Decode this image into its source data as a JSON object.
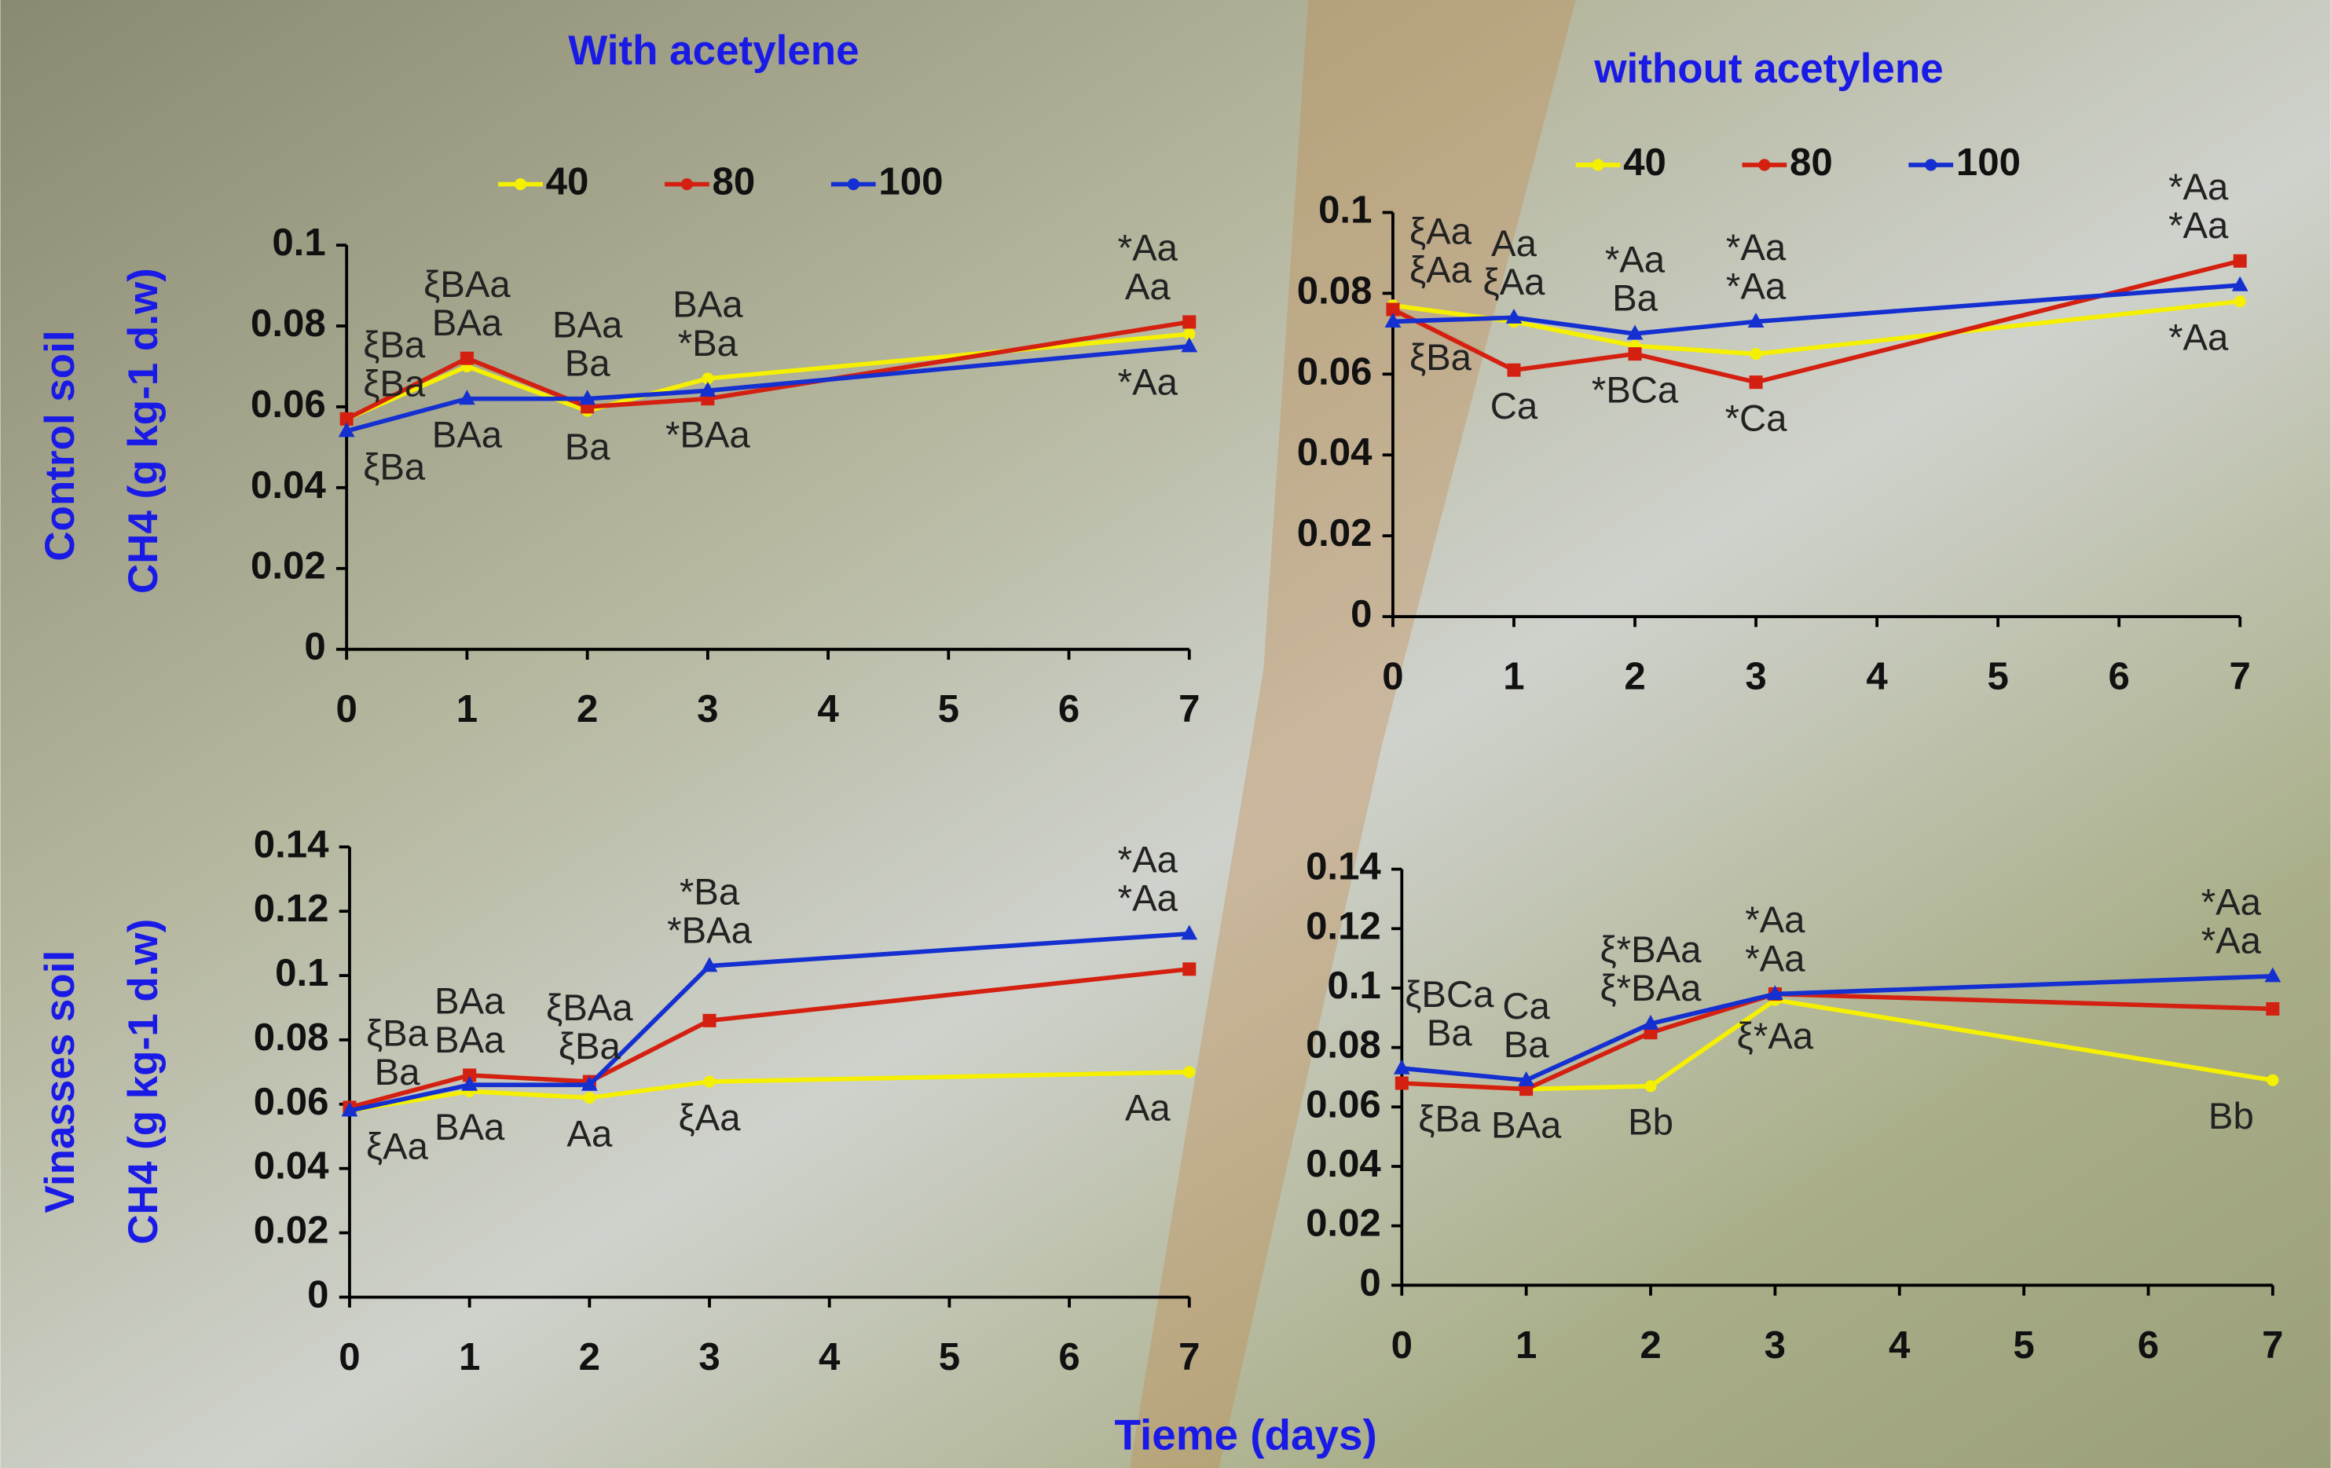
{
  "x_label": "Tieme (days)",
  "chart_data": [
    {
      "type": "line",
      "title": "With acetylene",
      "row_label": "Control soil",
      "y_label": "CH4 (g kg-1 d.w)",
      "x": [
        0,
        1,
        2,
        3,
        7
      ],
      "xlim": [
        0,
        7
      ],
      "xticks": [
        0,
        1,
        2,
        3,
        4,
        5,
        6,
        7
      ],
      "ylim": [
        0,
        0.1
      ],
      "yticks": [
        0,
        0.02,
        0.04,
        0.06,
        0.08,
        0.1
      ],
      "series": [
        {
          "name": "40",
          "color": "#f5f000",
          "marker": "circle",
          "values": [
            0.057,
            0.07,
            0.059,
            0.067,
            0.078
          ]
        },
        {
          "name": "80",
          "color": "#d42010",
          "marker": "square",
          "values": [
            0.057,
            0.072,
            0.06,
            0.062,
            0.081
          ]
        },
        {
          "name": "100",
          "color": "#1530d0",
          "marker": "triangle",
          "values": [
            0.054,
            0.062,
            0.062,
            0.064,
            0.075
          ]
        }
      ],
      "annotations": [
        [
          "ξBa",
          "ξBa",
          "ξBa"
        ],
        [
          "ξBAa",
          "BAa",
          "BAa"
        ],
        [
          "BAa",
          "Ba",
          "Ba"
        ],
        [
          "BAa",
          "*Ba",
          "*BAa"
        ],
        [
          "*Aa",
          "Aa",
          "*Aa"
        ]
      ]
    },
    {
      "type": "line",
      "title": "without acetylene",
      "x": [
        0,
        1,
        2,
        3,
        7
      ],
      "xlim": [
        0,
        7
      ],
      "xticks": [
        0,
        1,
        2,
        3,
        4,
        5,
        6,
        7
      ],
      "ylim": [
        0,
        0.1
      ],
      "yticks": [
        0,
        0.02,
        0.04,
        0.06,
        0.08,
        0.1
      ],
      "series": [
        {
          "name": "40",
          "color": "#f5f000",
          "marker": "circle",
          "values": [
            0.077,
            0.073,
            0.067,
            0.065,
            0.078
          ]
        },
        {
          "name": "80",
          "color": "#d42010",
          "marker": "square",
          "values": [
            0.076,
            0.061,
            0.065,
            0.058,
            0.088
          ]
        },
        {
          "name": "100",
          "color": "#1530d0",
          "marker": "triangle",
          "values": [
            0.073,
            0.074,
            0.07,
            0.073,
            0.082
          ]
        }
      ],
      "annotations": [
        [
          "ξAa",
          "ξAa",
          "ξBa"
        ],
        [
          "Aa",
          "ξAa",
          "Ca"
        ],
        [
          "*Aa",
          "Ba",
          "*BCa"
        ],
        [
          "*Aa",
          "*Aa",
          "*Ca"
        ],
        [
          "*Aa",
          "*Aa",
          "*Aa"
        ]
      ]
    },
    {
      "type": "line",
      "row_label": "Vinasses soil",
      "y_label": "CH4 (g kg-1 d.w)",
      "x": [
        0,
        1,
        2,
        3,
        7
      ],
      "xlim": [
        0,
        7
      ],
      "xticks": [
        0,
        1,
        2,
        3,
        4,
        5,
        6,
        7
      ],
      "ylim": [
        0,
        0.14
      ],
      "yticks": [
        0,
        0.02,
        0.04,
        0.06,
        0.08,
        0.1,
        0.12,
        0.14
      ],
      "series": [
        {
          "color": "#f5f000",
          "marker": "circle",
          "values": [
            0.058,
            0.064,
            0.062,
            0.067,
            0.07
          ]
        },
        {
          "color": "#d42010",
          "marker": "square",
          "values": [
            0.059,
            0.069,
            0.067,
            0.086,
            0.102
          ]
        },
        {
          "color": "#1530d0",
          "marker": "triangle",
          "values": [
            0.058,
            0.066,
            0.066,
            0.103,
            0.113
          ]
        }
      ],
      "annotations": [
        [
          "ξBa",
          "Ba",
          "ξAa"
        ],
        [
          "BAa",
          "BAa",
          "BAa"
        ],
        [
          "ξBAa",
          "ξBa",
          "Aa"
        ],
        [
          "*Ba",
          "*BAa",
          "ξAa"
        ],
        [
          "*Aa",
          "*Aa",
          "Aa"
        ]
      ]
    },
    {
      "type": "line",
      "x": [
        0,
        1,
        2,
        3,
        7
      ],
      "xlim": [
        0,
        7
      ],
      "xticks": [
        0,
        1,
        2,
        3,
        4,
        5,
        6,
        7
      ],
      "ylim": [
        0,
        0.14
      ],
      "yticks": [
        0,
        0.02,
        0.04,
        0.06,
        0.08,
        0.1,
        0.12,
        0.14
      ],
      "series": [
        {
          "color": "#f5f000",
          "marker": "circle",
          "values": [
            0.068,
            0.066,
            0.067,
            0.096,
            0.069
          ]
        },
        {
          "color": "#d42010",
          "marker": "square",
          "values": [
            0.068,
            0.066,
            0.085,
            0.098,
            0.093
          ]
        },
        {
          "color": "#1530d0",
          "marker": "triangle",
          "values": [
            0.073,
            0.069,
            0.088,
            0.098,
            0.104
          ]
        }
      ],
      "annotations": [
        [
          "ξBCa",
          "Ba",
          "ξBa"
        ],
        [
          "Ca",
          "Ba",
          "BAa"
        ],
        [
          "ξ*BAa",
          "ξ*BAa",
          "Bb"
        ],
        [
          "*Aa",
          "*Aa",
          "ξ*Aa"
        ],
        [
          "*Aa",
          "*Aa",
          "Bb"
        ]
      ]
    }
  ]
}
